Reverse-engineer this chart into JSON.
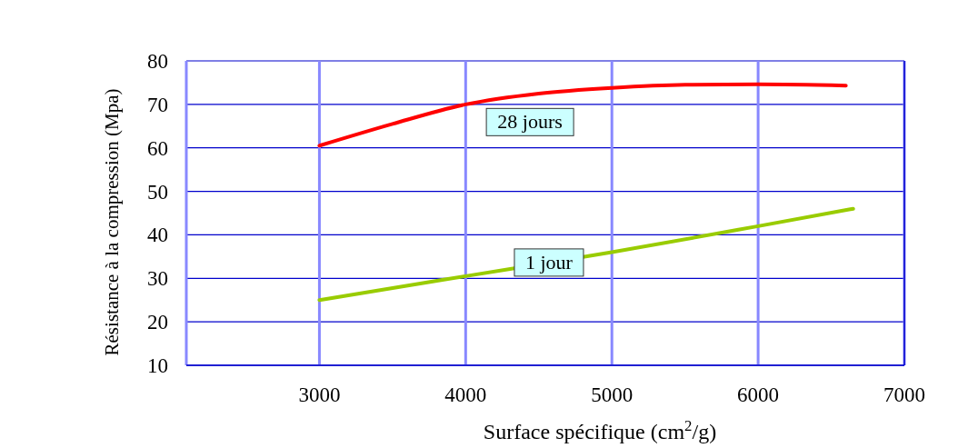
{
  "chart_data": {
    "type": "line",
    "xlabel": "Surface spécifique (cm$^{2}$/g)",
    "ylabel": "Résistance à la compression (Mpa)",
    "xlim": [
      2090,
      7000
    ],
    "ylim": [
      10,
      80
    ],
    "xticks": [
      3000,
      4000,
      5000,
      6000,
      7000
    ],
    "yticks": [
      10,
      20,
      30,
      40,
      50,
      60,
      70,
      80
    ],
    "grid": true,
    "marker": "none",
    "line_style": "solid",
    "series": [
      {
        "name": "28 jours",
        "color": "#ff0000",
        "x": [
          3000,
          3500,
          4000,
          4500,
          5000,
          5500,
          6000,
          6600
        ],
        "values": [
          60.5,
          65.5,
          70,
          72.5,
          73.8,
          74.5,
          74.6,
          74.3
        ]
      },
      {
        "name": "1 jour",
        "color": "#99cc00",
        "x": [
          3000,
          4000,
          5000,
          6000,
          6650
        ],
        "values": [
          25,
          30.5,
          36,
          42,
          46
        ]
      }
    ]
  }
}
